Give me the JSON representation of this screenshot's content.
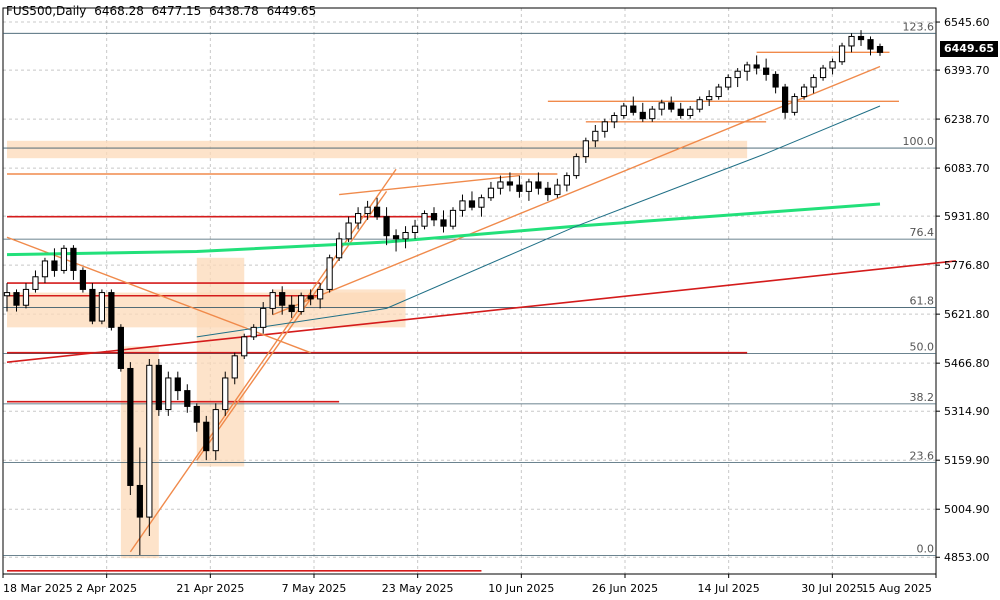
{
  "header": {
    "symbol": "FUS500,Daily",
    "open": "6468.28",
    "high": "6477.15",
    "low": "6438.78",
    "close": "6449.65"
  },
  "current_price_label": "6449.65",
  "colors": {
    "background": "#ffffff",
    "grid": "#c8c8c8",
    "bull_candle": "#ffffff",
    "bear_candle": "#000000",
    "trendline_orange": "#f08a4b",
    "zone_fill": "#fcd9b8",
    "red_line": "#d41b1b",
    "ma_green": "#22e07a",
    "ma_teal": "#1f6f86",
    "ma_gray": "#8aa0a8",
    "fib_line": "#3a5a6a"
  },
  "chart_data": {
    "type": "candlestick",
    "title": "FUS500,Daily",
    "ylim": [
      4800,
      6590
    ],
    "y_ticks": [
      "6545.60",
      "6393.70",
      "6238.70",
      "6083.70",
      "5931.80",
      "5776.80",
      "5621.80",
      "5466.80",
      "5314.90",
      "5159.90",
      "5004.90",
      "4853.00"
    ],
    "x_ticks": [
      "18 Mar 2025",
      "2 Apr 2025",
      "21 Apr 2025",
      "7 May 2025",
      "23 May 2025",
      "10 Jun 2025",
      "26 Jun 2025",
      "14 Jul 2025",
      "30 Jul 2025",
      "15 Aug 2025"
    ],
    "fibonacci": [
      {
        "label": "123.6",
        "value": 6510
      },
      {
        "label": "100.0",
        "value": 6147
      },
      {
        "label": "76.4",
        "value": 5859
      },
      {
        "label": "61.8",
        "value": 5643
      },
      {
        "label": "50.0",
        "value": 5497
      },
      {
        "label": "38.2",
        "value": 5338
      },
      {
        "label": "23.6",
        "value": 5153
      },
      {
        "label": "0.0",
        "value": 4858
      }
    ],
    "candles": [
      [
        5680,
        5720,
        5630,
        5690
      ],
      [
        5690,
        5700,
        5630,
        5650
      ],
      [
        5650,
        5720,
        5640,
        5700
      ],
      [
        5700,
        5760,
        5690,
        5740
      ],
      [
        5740,
        5800,
        5720,
        5790
      ],
      [
        5790,
        5830,
        5740,
        5760
      ],
      [
        5760,
        5840,
        5750,
        5830
      ],
      [
        5830,
        5840,
        5730,
        5760
      ],
      [
        5760,
        5770,
        5690,
        5700
      ],
      [
        5700,
        5720,
        5590,
        5600
      ],
      [
        5600,
        5700,
        5590,
        5690
      ],
      [
        5690,
        5700,
        5570,
        5580
      ],
      [
        5580,
        5590,
        5440,
        5450
      ],
      [
        5450,
        5470,
        5050,
        5080
      ],
      [
        5080,
        5200,
        4860,
        4980
      ],
      [
        4980,
        5480,
        4920,
        5460
      ],
      [
        5460,
        5480,
        5300,
        5320
      ],
      [
        5320,
        5440,
        5300,
        5420
      ],
      [
        5420,
        5440,
        5350,
        5380
      ],
      [
        5380,
        5400,
        5310,
        5330
      ],
      [
        5330,
        5340,
        5250,
        5280
      ],
      [
        5280,
        5300,
        5160,
        5190
      ],
      [
        5190,
        5340,
        5160,
        5320
      ],
      [
        5320,
        5440,
        5300,
        5420
      ],
      [
        5420,
        5500,
        5400,
        5490
      ],
      [
        5490,
        5560,
        5480,
        5550
      ],
      [
        5550,
        5590,
        5540,
        5580
      ],
      [
        5580,
        5660,
        5560,
        5640
      ],
      [
        5640,
        5700,
        5620,
        5690
      ],
      [
        5690,
        5710,
        5620,
        5650
      ],
      [
        5650,
        5680,
        5610,
        5630
      ],
      [
        5630,
        5690,
        5620,
        5680
      ],
      [
        5680,
        5700,
        5650,
        5670
      ],
      [
        5670,
        5720,
        5640,
        5700
      ],
      [
        5700,
        5810,
        5690,
        5800
      ],
      [
        5800,
        5880,
        5790,
        5860
      ],
      [
        5860,
        5930,
        5850,
        5910
      ],
      [
        5910,
        5960,
        5890,
        5940
      ],
      [
        5940,
        5980,
        5920,
        5960
      ],
      [
        5960,
        5990,
        5920,
        5930
      ],
      [
        5930,
        5960,
        5840,
        5870
      ],
      [
        5870,
        5890,
        5820,
        5860
      ],
      [
        5860,
        5900,
        5830,
        5880
      ],
      [
        5880,
        5920,
        5860,
        5900
      ],
      [
        5900,
        5950,
        5890,
        5940
      ],
      [
        5940,
        5960,
        5900,
        5920
      ],
      [
        5920,
        5950,
        5880,
        5900
      ],
      [
        5900,
        5960,
        5890,
        5950
      ],
      [
        5950,
        6000,
        5930,
        5980
      ],
      [
        5980,
        6010,
        5950,
        5960
      ],
      [
        5960,
        6000,
        5930,
        5990
      ],
      [
        5990,
        6040,
        5980,
        6020
      ],
      [
        6020,
        6060,
        6000,
        6040
      ],
      [
        6040,
        6070,
        6010,
        6030
      ],
      [
        6030,
        6060,
        5990,
        6010
      ],
      [
        6010,
        6050,
        5980,
        6040
      ],
      [
        6040,
        6070,
        6000,
        6020
      ],
      [
        6020,
        6040,
        5980,
        6000
      ],
      [
        6000,
        6050,
        5990,
        6030
      ],
      [
        6030,
        6070,
        6010,
        6060
      ],
      [
        6060,
        6130,
        6050,
        6120
      ],
      [
        6120,
        6180,
        6100,
        6170
      ],
      [
        6170,
        6220,
        6150,
        6200
      ],
      [
        6200,
        6240,
        6180,
        6230
      ],
      [
        6230,
        6260,
        6210,
        6250
      ],
      [
        6250,
        6290,
        6240,
        6280
      ],
      [
        6280,
        6310,
        6250,
        6260
      ],
      [
        6260,
        6290,
        6230,
        6240
      ],
      [
        6240,
        6280,
        6230,
        6270
      ],
      [
        6270,
        6300,
        6250,
        6290
      ],
      [
        6290,
        6310,
        6260,
        6270
      ],
      [
        6270,
        6290,
        6240,
        6250
      ],
      [
        6250,
        6280,
        6240,
        6270
      ],
      [
        6270,
        6310,
        6260,
        6300
      ],
      [
        6300,
        6330,
        6280,
        6310
      ],
      [
        6310,
        6350,
        6300,
        6340
      ],
      [
        6340,
        6380,
        6330,
        6370
      ],
      [
        6370,
        6400,
        6340,
        6390
      ],
      [
        6390,
        6420,
        6360,
        6410
      ],
      [
        6410,
        6440,
        6380,
        6400
      ],
      [
        6400,
        6430,
        6360,
        6380
      ],
      [
        6380,
        6390,
        6320,
        6340
      ],
      [
        6340,
        6350,
        6240,
        6260
      ],
      [
        6260,
        6320,
        6250,
        6310
      ],
      [
        6310,
        6350,
        6300,
        6340
      ],
      [
        6340,
        6380,
        6320,
        6370
      ],
      [
        6370,
        6410,
        6360,
        6400
      ],
      [
        6400,
        6430,
        6380,
        6420
      ],
      [
        6420,
        6480,
        6410,
        6470
      ],
      [
        6470,
        6510,
        6450,
        6500
      ],
      [
        6500,
        6520,
        6470,
        6490
      ],
      [
        6490,
        6500,
        6440,
        6460
      ],
      [
        6468.28,
        6477.15,
        6438.78,
        6449.65
      ]
    ],
    "moving_averages": [
      {
        "color": "green",
        "values": [
          [
            0,
            5810
          ],
          [
            20,
            5820
          ],
          [
            40,
            5850
          ],
          [
            60,
            5900
          ],
          [
            92,
            5970
          ]
        ]
      },
      {
        "color": "teal",
        "values": [
          [
            20,
            5550
          ],
          [
            40,
            5640
          ],
          [
            60,
            5900
          ],
          [
            80,
            6130
          ],
          [
            92,
            6280
          ]
        ]
      }
    ],
    "red_lines": [
      {
        "from": [
          0,
          5470
        ],
        "to": [
          100,
          5790
        ]
      },
      {
        "from": [
          0,
          5500
        ],
        "to": [
          78,
          5500
        ]
      }
    ]
  }
}
